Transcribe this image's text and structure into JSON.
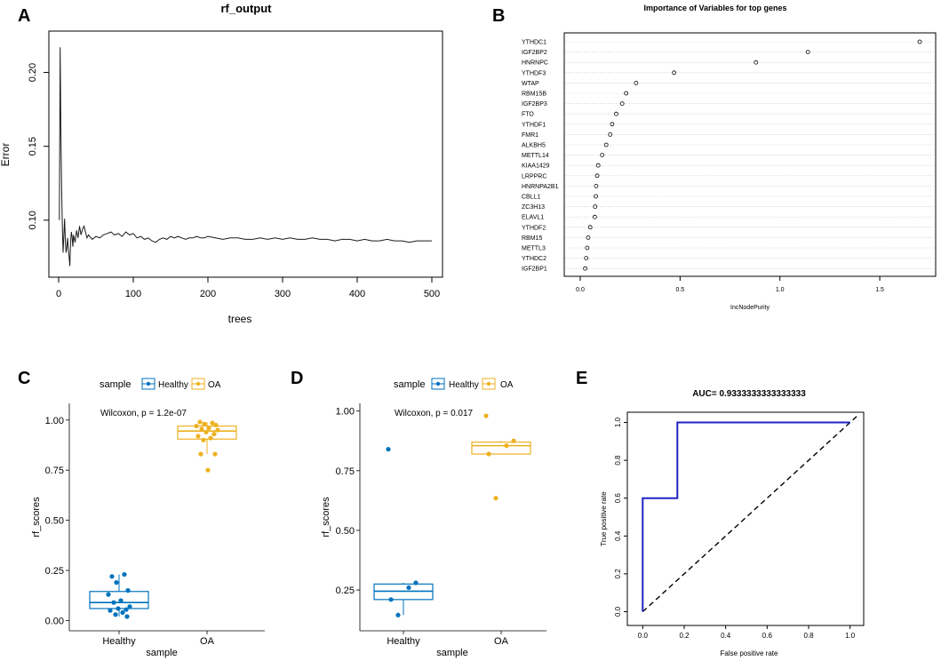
{
  "figure": {
    "panels": {
      "A": "A",
      "B": "B",
      "C": "C",
      "D": "D",
      "E": "E"
    }
  },
  "chart_data": [
    {
      "panel": "A",
      "type": "line",
      "title": "rf_output",
      "xlabel": "trees",
      "ylabel": "Error",
      "xlim": [
        0,
        500
      ],
      "ylim": [
        0.065,
        0.225
      ],
      "xticks": [
        "0",
        "100",
        "200",
        "300",
        "400",
        "500"
      ],
      "yticks": [
        "0.10",
        "0.15",
        "0.20"
      ],
      "x": [
        1,
        2,
        3,
        4,
        5,
        6,
        7,
        8,
        9,
        10,
        11,
        12,
        13,
        14,
        15,
        16,
        17,
        18,
        19,
        20,
        22,
        24,
        26,
        28,
        30,
        32,
        34,
        36,
        38,
        40,
        45,
        50,
        55,
        60,
        65,
        70,
        75,
        80,
        85,
        90,
        95,
        100,
        105,
        110,
        115,
        120,
        125,
        130,
        135,
        140,
        145,
        150,
        155,
        160,
        165,
        170,
        175,
        180,
        185,
        190,
        195,
        200,
        210,
        220,
        230,
        240,
        250,
        260,
        270,
        280,
        290,
        300,
        310,
        320,
        330,
        340,
        350,
        360,
        370,
        380,
        390,
        400,
        410,
        420,
        430,
        440,
        450,
        460,
        470,
        480,
        490,
        500
      ],
      "y": [
        0.1,
        0.217,
        0.16,
        0.12,
        0.095,
        0.078,
        0.09,
        0.101,
        0.085,
        0.078,
        0.082,
        0.088,
        0.08,
        0.075,
        0.069,
        0.085,
        0.092,
        0.089,
        0.082,
        0.09,
        0.085,
        0.093,
        0.088,
        0.096,
        0.09,
        0.094,
        0.096,
        0.092,
        0.088,
        0.09,
        0.087,
        0.089,
        0.088,
        0.09,
        0.091,
        0.092,
        0.09,
        0.091,
        0.089,
        0.092,
        0.09,
        0.091,
        0.088,
        0.089,
        0.087,
        0.088,
        0.086,
        0.085,
        0.087,
        0.088,
        0.087,
        0.089,
        0.088,
        0.089,
        0.088,
        0.087,
        0.088,
        0.088,
        0.089,
        0.088,
        0.088,
        0.089,
        0.088,
        0.087,
        0.088,
        0.088,
        0.087,
        0.087,
        0.088,
        0.087,
        0.088,
        0.087,
        0.088,
        0.087,
        0.087,
        0.088,
        0.087,
        0.087,
        0.086,
        0.087,
        0.087,
        0.086,
        0.087,
        0.086,
        0.086,
        0.087,
        0.086,
        0.086,
        0.085,
        0.086,
        0.086,
        0.086
      ]
    },
    {
      "panel": "B",
      "type": "scatter",
      "title": "Importance of Variables for top genes",
      "xlabel": "IncNodePurity",
      "xlim": [
        -0.08,
        1.78
      ],
      "xticks": [
        "0.0",
        "0.5",
        "1.0",
        "1.5"
      ],
      "genes": [
        "YTHDC1",
        "IGF2BP2",
        "HNRNPC",
        "YTHDF3",
        "WTAP",
        "RBM15B",
        "IGF2BP3",
        "FTO",
        "YTHDF1",
        "FMR1",
        "ALKBH5",
        "METTL14",
        "KIAA1429",
        "LRPPRC",
        "HNRNPA2B1",
        "CBLL1",
        "ZC3H13",
        "ELAVL1",
        "YTHDF2",
        "RBM15",
        "METTL3",
        "YTHDC2",
        "IGF2BP1"
      ],
      "values": [
        1.7,
        1.14,
        0.88,
        0.47,
        0.28,
        0.23,
        0.21,
        0.18,
        0.16,
        0.15,
        0.13,
        0.11,
        0.09,
        0.085,
        0.08,
        0.078,
        0.075,
        0.073,
        0.05,
        0.04,
        0.035,
        0.03,
        0.025
      ]
    },
    {
      "panel": "C",
      "type": "box",
      "title": "",
      "legend_title": "sample",
      "legend_entries": [
        "Healthy",
        "OA"
      ],
      "annotation": "Wilcoxon, p = 1.2e-07",
      "xlabel": "sample",
      "ylabel": "rf_scores",
      "categories": [
        "Healthy",
        "OA"
      ],
      "ylim": [
        -0.02,
        1.03
      ],
      "yticks": [
        "0.00",
        "0.25",
        "0.50",
        "0.75",
        "1.00"
      ],
      "colors": {
        "Healthy": "#0072BD",
        "OA": "#EDB120"
      },
      "boxes": [
        {
          "name": "Healthy",
          "min": 0.02,
          "q1": 0.06,
          "median": 0.09,
          "q3": 0.145,
          "max": 0.23
        },
        {
          "name": "OA",
          "min": 0.83,
          "q1": 0.905,
          "median": 0.945,
          "q3": 0.97,
          "max": 0.99
        }
      ],
      "points": {
        "Healthy": [
          0.22,
          0.23,
          0.19,
          0.15,
          0.13,
          0.1,
          0.09,
          0.07,
          0.06,
          0.055,
          0.05,
          0.04,
          0.03,
          0.02
        ],
        "OA": [
          0.99,
          0.985,
          0.98,
          0.975,
          0.97,
          0.96,
          0.955,
          0.95,
          0.94,
          0.93,
          0.92,
          0.91,
          0.9,
          0.83,
          0.83,
          0.75
        ]
      }
    },
    {
      "panel": "D",
      "type": "box",
      "title": "",
      "legend_title": "sample",
      "legend_entries": [
        "Healthy",
        "OA"
      ],
      "annotation": "Wilcoxon, p = 0.017",
      "xlabel": "sample",
      "ylabel": "rf_scores",
      "categories": [
        "Healthy",
        "OA"
      ],
      "ylim": [
        0.12,
        1.01
      ],
      "yticks": [
        "0.25",
        "0.50",
        "0.75",
        "1.00"
      ],
      "colors": {
        "Healthy": "#0072BD",
        "OA": "#EDB120"
      },
      "boxes": [
        {
          "name": "Healthy",
          "min": 0.145,
          "q1": 0.21,
          "median": 0.245,
          "q3": 0.275,
          "max": 0.28
        },
        {
          "name": "OA",
          "min": 0.82,
          "q1": 0.82,
          "median": 0.855,
          "q3": 0.87,
          "max": 0.875
        }
      ],
      "points": {
        "Healthy": [
          0.84,
          0.28,
          0.26,
          0.21,
          0.145
        ],
        "OA": [
          0.98,
          0.875,
          0.855,
          0.82,
          0.635
        ]
      }
    },
    {
      "panel": "E",
      "type": "line",
      "title": "AUC= 0.9333333333333333",
      "xlabel": "False positive rate",
      "ylabel": "True positive rate",
      "xlim": [
        -0.04,
        1.04
      ],
      "ylim": [
        -0.04,
        1.04
      ],
      "xticks": [
        "0.0",
        "0.2",
        "0.4",
        "0.6",
        "0.8",
        "1.0"
      ],
      "yticks": [
        "0.0",
        "0.2",
        "0.4",
        "0.6",
        "0.8",
        "1.0"
      ],
      "series": [
        {
          "name": "ROC",
          "color": "#1f23c4",
          "x": [
            0,
            0,
            0.167,
            0.167,
            1
          ],
          "y": [
            0,
            0.6,
            0.6,
            1,
            1
          ]
        },
        {
          "name": "diagonal",
          "color": "#000000",
          "x": [
            0,
            1.04
          ],
          "y": [
            0,
            1.04
          ]
        }
      ]
    }
  ]
}
